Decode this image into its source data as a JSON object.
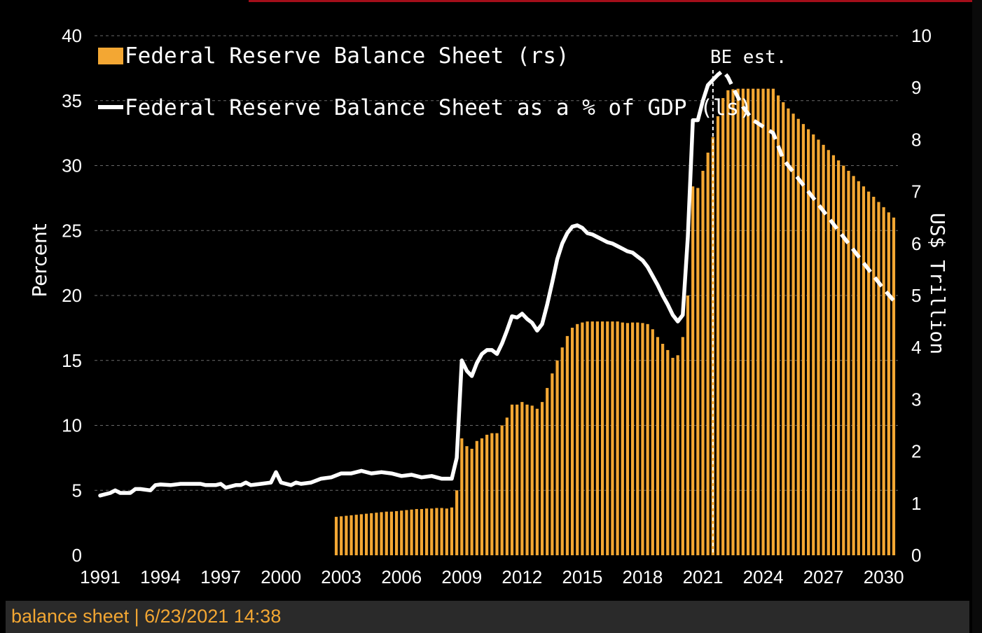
{
  "chart_data": {
    "type": "bar+line",
    "legend": [
      {
        "label": "Federal Reserve Balance Sheet (rs)",
        "swatch": "bar",
        "color": "#f3a733"
      },
      {
        "label": "Federal Reserve Balance Sheet as a % of GDP (ls)",
        "swatch": "line",
        "color": "#ffffff"
      }
    ],
    "ylabel_left": "Percent",
    "ylabel_right": "US$ Trillion",
    "ylim_left": [
      0,
      40
    ],
    "ylim_right": [
      0,
      10
    ],
    "yticks_left": [
      "0",
      "5",
      "10",
      "15",
      "20",
      "25",
      "30",
      "35",
      "40"
    ],
    "yticks_right": [
      "0",
      "1",
      "2",
      "3",
      "4",
      "5",
      "6",
      "7",
      "8",
      "9",
      "10"
    ],
    "xticks": [
      "1991",
      "1994",
      "1997",
      "2000",
      "2003",
      "2006",
      "2009",
      "2012",
      "2015",
      "2018",
      "2021",
      "2024",
      "2027",
      "2030"
    ],
    "xlim": [
      1991,
      2030.5
    ],
    "annotation": {
      "text": "BE est.",
      "x": 2021.5
    },
    "grid": "horizontal dashed",
    "bar_series": {
      "name": "Federal Reserve Balance Sheet (rs)",
      "axis": "right",
      "points": [
        [
          2002.75,
          0.74
        ],
        [
          2003.0,
          0.75
        ],
        [
          2003.25,
          0.76
        ],
        [
          2003.5,
          0.77
        ],
        [
          2003.75,
          0.78
        ],
        [
          2004.0,
          0.79
        ],
        [
          2004.25,
          0.8
        ],
        [
          2004.5,
          0.81
        ],
        [
          2004.75,
          0.82
        ],
        [
          2005.0,
          0.83
        ],
        [
          2005.25,
          0.84
        ],
        [
          2005.5,
          0.84
        ],
        [
          2005.75,
          0.85
        ],
        [
          2006.0,
          0.86
        ],
        [
          2006.25,
          0.87
        ],
        [
          2006.5,
          0.88
        ],
        [
          2006.75,
          0.89
        ],
        [
          2007.0,
          0.89
        ],
        [
          2007.25,
          0.9
        ],
        [
          2007.5,
          0.9
        ],
        [
          2007.75,
          0.91
        ],
        [
          2008.0,
          0.91
        ],
        [
          2008.25,
          0.9
        ],
        [
          2008.5,
          0.92
        ],
        [
          2008.75,
          1.25
        ],
        [
          2009.0,
          2.25
        ],
        [
          2009.25,
          2.1
        ],
        [
          2009.5,
          2.05
        ],
        [
          2009.75,
          2.2
        ],
        [
          2010.0,
          2.25
        ],
        [
          2010.25,
          2.32
        ],
        [
          2010.5,
          2.35
        ],
        [
          2010.75,
          2.35
        ],
        [
          2011.0,
          2.5
        ],
        [
          2011.25,
          2.65
        ],
        [
          2011.5,
          2.9
        ],
        [
          2011.75,
          2.9
        ],
        [
          2012.0,
          2.95
        ],
        [
          2012.25,
          2.9
        ],
        [
          2012.5,
          2.88
        ],
        [
          2012.75,
          2.82
        ],
        [
          2013.0,
          2.95
        ],
        [
          2013.25,
          3.22
        ],
        [
          2013.5,
          3.5
        ],
        [
          2013.75,
          3.75
        ],
        [
          2014.0,
          4.0
        ],
        [
          2014.25,
          4.22
        ],
        [
          2014.5,
          4.38
        ],
        [
          2014.75,
          4.45
        ],
        [
          2015.0,
          4.48
        ],
        [
          2015.25,
          4.5
        ],
        [
          2015.5,
          4.5
        ],
        [
          2015.75,
          4.5
        ],
        [
          2016.0,
          4.5
        ],
        [
          2016.25,
          4.5
        ],
        [
          2016.5,
          4.5
        ],
        [
          2016.75,
          4.5
        ],
        [
          2017.0,
          4.48
        ],
        [
          2017.25,
          4.47
        ],
        [
          2017.5,
          4.48
        ],
        [
          2017.75,
          4.48
        ],
        [
          2018.0,
          4.47
        ],
        [
          2018.25,
          4.45
        ],
        [
          2018.5,
          4.35
        ],
        [
          2018.75,
          4.2
        ],
        [
          2019.0,
          4.07
        ],
        [
          2019.25,
          3.95
        ],
        [
          2019.5,
          3.8
        ],
        [
          2019.75,
          3.85
        ],
        [
          2020.0,
          4.2
        ],
        [
          2020.25,
          5.0
        ],
        [
          2020.5,
          7.1
        ],
        [
          2020.75,
          7.07
        ],
        [
          2021.0,
          7.4
        ],
        [
          2021.25,
          7.75
        ],
        [
          2021.5,
          8.05
        ],
        [
          2021.75,
          8.45
        ],
        [
          2022.0,
          8.8
        ],
        [
          2022.25,
          8.95
        ],
        [
          2022.5,
          8.97
        ],
        [
          2022.75,
          8.98
        ],
        [
          2023.0,
          8.98
        ],
        [
          2023.25,
          8.98
        ],
        [
          2023.5,
          8.98
        ],
        [
          2023.75,
          8.98
        ],
        [
          2024.0,
          8.98
        ],
        [
          2024.25,
          8.98
        ],
        [
          2024.5,
          8.98
        ],
        [
          2024.75,
          8.85
        ],
        [
          2025.0,
          8.72
        ],
        [
          2025.25,
          8.6
        ],
        [
          2025.5,
          8.5
        ],
        [
          2025.75,
          8.4
        ],
        [
          2026.0,
          8.3
        ],
        [
          2026.25,
          8.2
        ],
        [
          2026.5,
          8.1
        ],
        [
          2026.75,
          8.0
        ],
        [
          2027.0,
          7.9
        ],
        [
          2027.25,
          7.8
        ],
        [
          2027.5,
          7.7
        ],
        [
          2027.75,
          7.6
        ],
        [
          2028.0,
          7.5
        ],
        [
          2028.25,
          7.4
        ],
        [
          2028.5,
          7.3
        ],
        [
          2028.75,
          7.2
        ],
        [
          2029.0,
          7.1
        ],
        [
          2029.25,
          7.0
        ],
        [
          2029.5,
          6.9
        ],
        [
          2029.75,
          6.8
        ],
        [
          2030.0,
          6.7
        ],
        [
          2030.25,
          6.6
        ],
        [
          2030.5,
          6.5
        ]
      ]
    },
    "line_series": {
      "name": "Federal Reserve Balance Sheet as a % of GDP (ls)",
      "axis": "left",
      "points": [
        [
          1991.0,
          4.6
        ],
        [
          1991.5,
          4.8
        ],
        [
          1991.75,
          5.0
        ],
        [
          1992.0,
          4.8
        ],
        [
          1992.5,
          4.8
        ],
        [
          1992.75,
          5.1
        ],
        [
          1993.0,
          5.1
        ],
        [
          1993.5,
          5.0
        ],
        [
          1993.75,
          5.4
        ],
        [
          1994.0,
          5.45
        ],
        [
          1994.5,
          5.4
        ],
        [
          1995.0,
          5.5
        ],
        [
          1995.5,
          5.5
        ],
        [
          1996.0,
          5.5
        ],
        [
          1996.25,
          5.4
        ],
        [
          1996.75,
          5.4
        ],
        [
          1997.0,
          5.5
        ],
        [
          1997.25,
          5.2
        ],
        [
          1997.75,
          5.4
        ],
        [
          1998.0,
          5.4
        ],
        [
          1998.25,
          5.6
        ],
        [
          1998.5,
          5.4
        ],
        [
          1999.0,
          5.5
        ],
        [
          1999.5,
          5.6
        ],
        [
          1999.75,
          6.4
        ],
        [
          2000.0,
          5.6
        ],
        [
          2000.5,
          5.4
        ],
        [
          2000.75,
          5.6
        ],
        [
          2001.0,
          5.5
        ],
        [
          2001.5,
          5.6
        ],
        [
          2002.0,
          5.9
        ],
        [
          2002.5,
          6.0
        ],
        [
          2003.0,
          6.3
        ],
        [
          2003.5,
          6.3
        ],
        [
          2004.0,
          6.5
        ],
        [
          2004.5,
          6.3
        ],
        [
          2005.0,
          6.4
        ],
        [
          2005.5,
          6.3
        ],
        [
          2006.0,
          6.1
        ],
        [
          2006.5,
          6.2
        ],
        [
          2007.0,
          6.0
        ],
        [
          2007.5,
          6.1
        ],
        [
          2008.0,
          5.9
        ],
        [
          2008.25,
          5.9
        ],
        [
          2008.5,
          5.9
        ],
        [
          2008.75,
          7.5
        ],
        [
          2009.0,
          15.0
        ],
        [
          2009.25,
          14.2
        ],
        [
          2009.5,
          13.8
        ],
        [
          2009.75,
          14.8
        ],
        [
          2010.0,
          15.5
        ],
        [
          2010.25,
          15.8
        ],
        [
          2010.5,
          15.8
        ],
        [
          2010.75,
          15.5
        ],
        [
          2011.0,
          16.3
        ],
        [
          2011.25,
          17.3
        ],
        [
          2011.5,
          18.4
        ],
        [
          2011.75,
          18.3
        ],
        [
          2012.0,
          18.6
        ],
        [
          2012.25,
          18.2
        ],
        [
          2012.5,
          17.9
        ],
        [
          2012.75,
          17.3
        ],
        [
          2013.0,
          17.8
        ],
        [
          2013.25,
          19.3
        ],
        [
          2013.5,
          21.0
        ],
        [
          2013.75,
          22.8
        ],
        [
          2014.0,
          24.0
        ],
        [
          2014.25,
          24.8
        ],
        [
          2014.5,
          25.3
        ],
        [
          2014.75,
          25.4
        ],
        [
          2015.0,
          25.2
        ],
        [
          2015.25,
          24.8
        ],
        [
          2015.5,
          24.7
        ],
        [
          2015.75,
          24.5
        ],
        [
          2016.0,
          24.3
        ],
        [
          2016.25,
          24.1
        ],
        [
          2016.5,
          24.0
        ],
        [
          2016.75,
          23.8
        ],
        [
          2017.0,
          23.6
        ],
        [
          2017.25,
          23.4
        ],
        [
          2017.5,
          23.3
        ],
        [
          2017.75,
          23.0
        ],
        [
          2018.0,
          22.7
        ],
        [
          2018.25,
          22.2
        ],
        [
          2018.5,
          21.5
        ],
        [
          2018.75,
          20.8
        ],
        [
          2019.0,
          20.0
        ],
        [
          2019.25,
          19.3
        ],
        [
          2019.5,
          18.5
        ],
        [
          2019.75,
          18.0
        ],
        [
          2020.0,
          18.5
        ],
        [
          2020.25,
          24.5
        ],
        [
          2020.5,
          33.5
        ],
        [
          2020.75,
          33.5
        ],
        [
          2021.0,
          35.0
        ],
        [
          2021.25,
          36.2
        ],
        [
          2021.5,
          36.6
        ]
      ]
    },
    "line_estimate": {
      "name": "BE est.",
      "axis": "left",
      "style": "dashed",
      "points": [
        [
          2021.5,
          36.6
        ],
        [
          2021.75,
          37.0
        ],
        [
          2022.0,
          37.3
        ],
        [
          2022.25,
          36.8
        ],
        [
          2022.5,
          36.0
        ],
        [
          2023.0,
          34.5
        ],
        [
          2023.5,
          33.5
        ],
        [
          2024.0,
          33.0
        ],
        [
          2024.5,
          32.5
        ],
        [
          2024.75,
          31.5
        ],
        [
          2025.0,
          30.5
        ],
        [
          2025.5,
          29.5
        ],
        [
          2026.0,
          28.5
        ],
        [
          2026.5,
          27.5
        ],
        [
          2027.0,
          26.5
        ],
        [
          2027.5,
          25.5
        ],
        [
          2028.0,
          24.5
        ],
        [
          2028.5,
          23.5
        ],
        [
          2029.0,
          22.5
        ],
        [
          2029.5,
          21.5
        ],
        [
          2030.0,
          20.5
        ],
        [
          2030.5,
          19.6
        ]
      ]
    }
  },
  "footer": {
    "text": "balance sheet | 6/23/2021 14:38"
  }
}
